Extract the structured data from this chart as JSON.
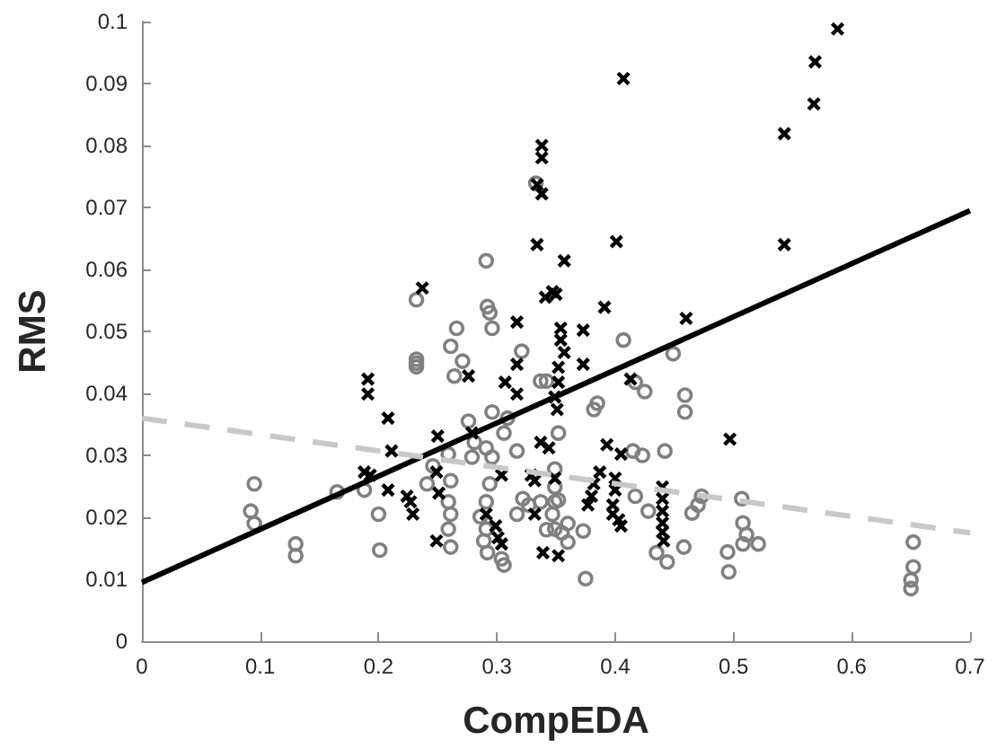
{
  "chart_data": {
    "type": "scatter",
    "xlabel": "CompEDA",
    "ylabel": "RMS",
    "xlim": [
      0,
      0.7
    ],
    "ylim": [
      0,
      0.1
    ],
    "xticks": [
      0,
      0.1,
      0.2,
      0.3,
      0.4,
      0.5,
      0.6,
      0.7
    ],
    "yticks": [
      0,
      0.01,
      0.02,
      0.03,
      0.04,
      0.05,
      0.06,
      0.07,
      0.08,
      0.09,
      0.1
    ],
    "series": [
      {
        "marker": "circle",
        "color": "#808080",
        "x": [
          0.095,
          0.092,
          0.095,
          0.13,
          0.13,
          0.165,
          0.188,
          0.2,
          0.201,
          0.232,
          0.232,
          0.232,
          0.232,
          0.291,
          0.292,
          0.294,
          0.266,
          0.296,
          0.333,
          0.261,
          0.271,
          0.264,
          0.321,
          0.276,
          0.281,
          0.279,
          0.296,
          0.309,
          0.306,
          0.291,
          0.296,
          0.317,
          0.259,
          0.261,
          0.259,
          0.261,
          0.259,
          0.261,
          0.246,
          0.241,
          0.294,
          0.291,
          0.286,
          0.291,
          0.289,
          0.292,
          0.304,
          0.306,
          0.322,
          0.327,
          0.317,
          0.349,
          0.349,
          0.349,
          0.347,
          0.349,
          0.407,
          0.449,
          0.425,
          0.417,
          0.385,
          0.382,
          0.459,
          0.459,
          0.352,
          0.442,
          0.415,
          0.423,
          0.417,
          0.428,
          0.473,
          0.47,
          0.465,
          0.458,
          0.435,
          0.444,
          0.507,
          0.508,
          0.511,
          0.521,
          0.508,
          0.495,
          0.496,
          0.652,
          0.652,
          0.65,
          0.65,
          0.375,
          0.337,
          0.352,
          0.36,
          0.355,
          0.342,
          0.36,
          0.373,
          0.337,
          0.342
        ],
        "values": [
          0.0254,
          0.021,
          0.019,
          0.0157,
          0.0138,
          0.0241,
          0.0244,
          0.0205,
          0.0147,
          0.0449,
          0.0455,
          0.0443,
          0.0551,
          0.0614,
          0.054,
          0.053,
          0.0505,
          0.0505,
          0.0739,
          0.0476,
          0.0452,
          0.0428,
          0.0468,
          0.0355,
          0.0321,
          0.0297,
          0.037,
          0.036,
          0.0336,
          0.0312,
          0.0297,
          0.0307,
          0.0302,
          0.0259,
          0.0225,
          0.0205,
          0.0181,
          0.0152,
          0.0283,
          0.0254,
          0.0254,
          0.0225,
          0.0201,
          0.0181,
          0.0162,
          0.0143,
          0.0133,
          0.0123,
          0.023,
          0.022,
          0.0205,
          0.0278,
          0.0249,
          0.0225,
          0.0205,
          0.0181,
          0.0486,
          0.0464,
          0.0403,
          0.0418,
          0.0384,
          0.0374,
          0.0397,
          0.037,
          0.0336,
          0.0307,
          0.0307,
          0.03,
          0.0234,
          0.021,
          0.0234,
          0.022,
          0.0207,
          0.0152,
          0.0143,
          0.0128,
          0.023,
          0.0191,
          0.0172,
          0.0157,
          0.0157,
          0.0144,
          0.0112,
          0.016,
          0.012,
          0.0099,
          0.0085,
          0.0101,
          0.0225,
          0.0228,
          0.019,
          0.0175,
          0.018,
          0.016,
          0.0178,
          0.042,
          0.042
        ]
      },
      {
        "marker": "cross",
        "color": "#000000",
        "x": [
          0.237,
          0.338,
          0.338,
          0.334,
          0.338,
          0.334,
          0.317,
          0.341,
          0.347,
          0.35,
          0.588,
          0.569,
          0.568,
          0.543,
          0.543,
          0.407,
          0.401,
          0.357,
          0.391,
          0.46,
          0.354,
          0.373,
          0.191,
          0.191,
          0.208,
          0.211,
          0.188,
          0.193,
          0.208,
          0.224,
          0.227,
          0.229,
          0.25,
          0.249,
          0.251,
          0.249,
          0.276,
          0.279,
          0.307,
          0.317,
          0.317,
          0.304,
          0.291,
          0.299,
          0.301,
          0.304,
          0.332,
          0.329,
          0.332,
          0.337,
          0.344,
          0.339,
          0.354,
          0.357,
          0.352,
          0.352,
          0.349,
          0.351,
          0.373,
          0.413,
          0.497,
          0.349,
          0.352,
          0.393,
          0.405,
          0.387,
          0.382,
          0.38,
          0.377,
          0.4,
          0.4,
          0.398,
          0.398,
          0.403,
          0.405,
          0.44,
          0.44,
          0.44,
          0.44,
          0.44,
          0.441
        ],
        "values": [
          0.057,
          0.08,
          0.078,
          0.0737,
          0.0722,
          0.064,
          0.0515,
          0.0555,
          0.0564,
          0.056,
          0.0988,
          0.0935,
          0.0867,
          0.0819,
          0.064,
          0.0908,
          0.0645,
          0.0614,
          0.0539,
          0.0521,
          0.0505,
          0.0502,
          0.0423,
          0.0399,
          0.036,
          0.0307,
          0.0273,
          0.0268,
          0.0244,
          0.0234,
          0.0225,
          0.0205,
          0.0331,
          0.0273,
          0.0239,
          0.0162,
          0.0428,
          0.0336,
          0.0418,
          0.0447,
          0.0399,
          0.0268,
          0.0205,
          0.0186,
          0.0167,
          0.0157,
          0.0205,
          0.0268,
          0.0259,
          0.0321,
          0.0312,
          0.0143,
          0.0486,
          0.0466,
          0.0442,
          0.0418,
          0.0394,
          0.0374,
          0.0447,
          0.0423,
          0.0326,
          0.0263,
          0.0138,
          0.0317,
          0.0302,
          0.0273,
          0.0254,
          0.0234,
          0.022,
          0.0263,
          0.0244,
          0.022,
          0.0205,
          0.0196,
          0.0186,
          0.0249,
          0.023,
          0.021,
          0.0191,
          0.0176,
          0.0162
        ]
      },
      {
        "type": "line",
        "marker": "none",
        "line_style": "solid",
        "color": "#000000",
        "x": [
          0,
          0.7
        ],
        "values": [
          0.0095,
          0.0695
        ]
      },
      {
        "type": "line",
        "marker": "none",
        "line_style": "dashed",
        "color": "#c8c8c8",
        "x": [
          0,
          0.7
        ],
        "values": [
          0.036,
          0.0175
        ]
      }
    ]
  }
}
